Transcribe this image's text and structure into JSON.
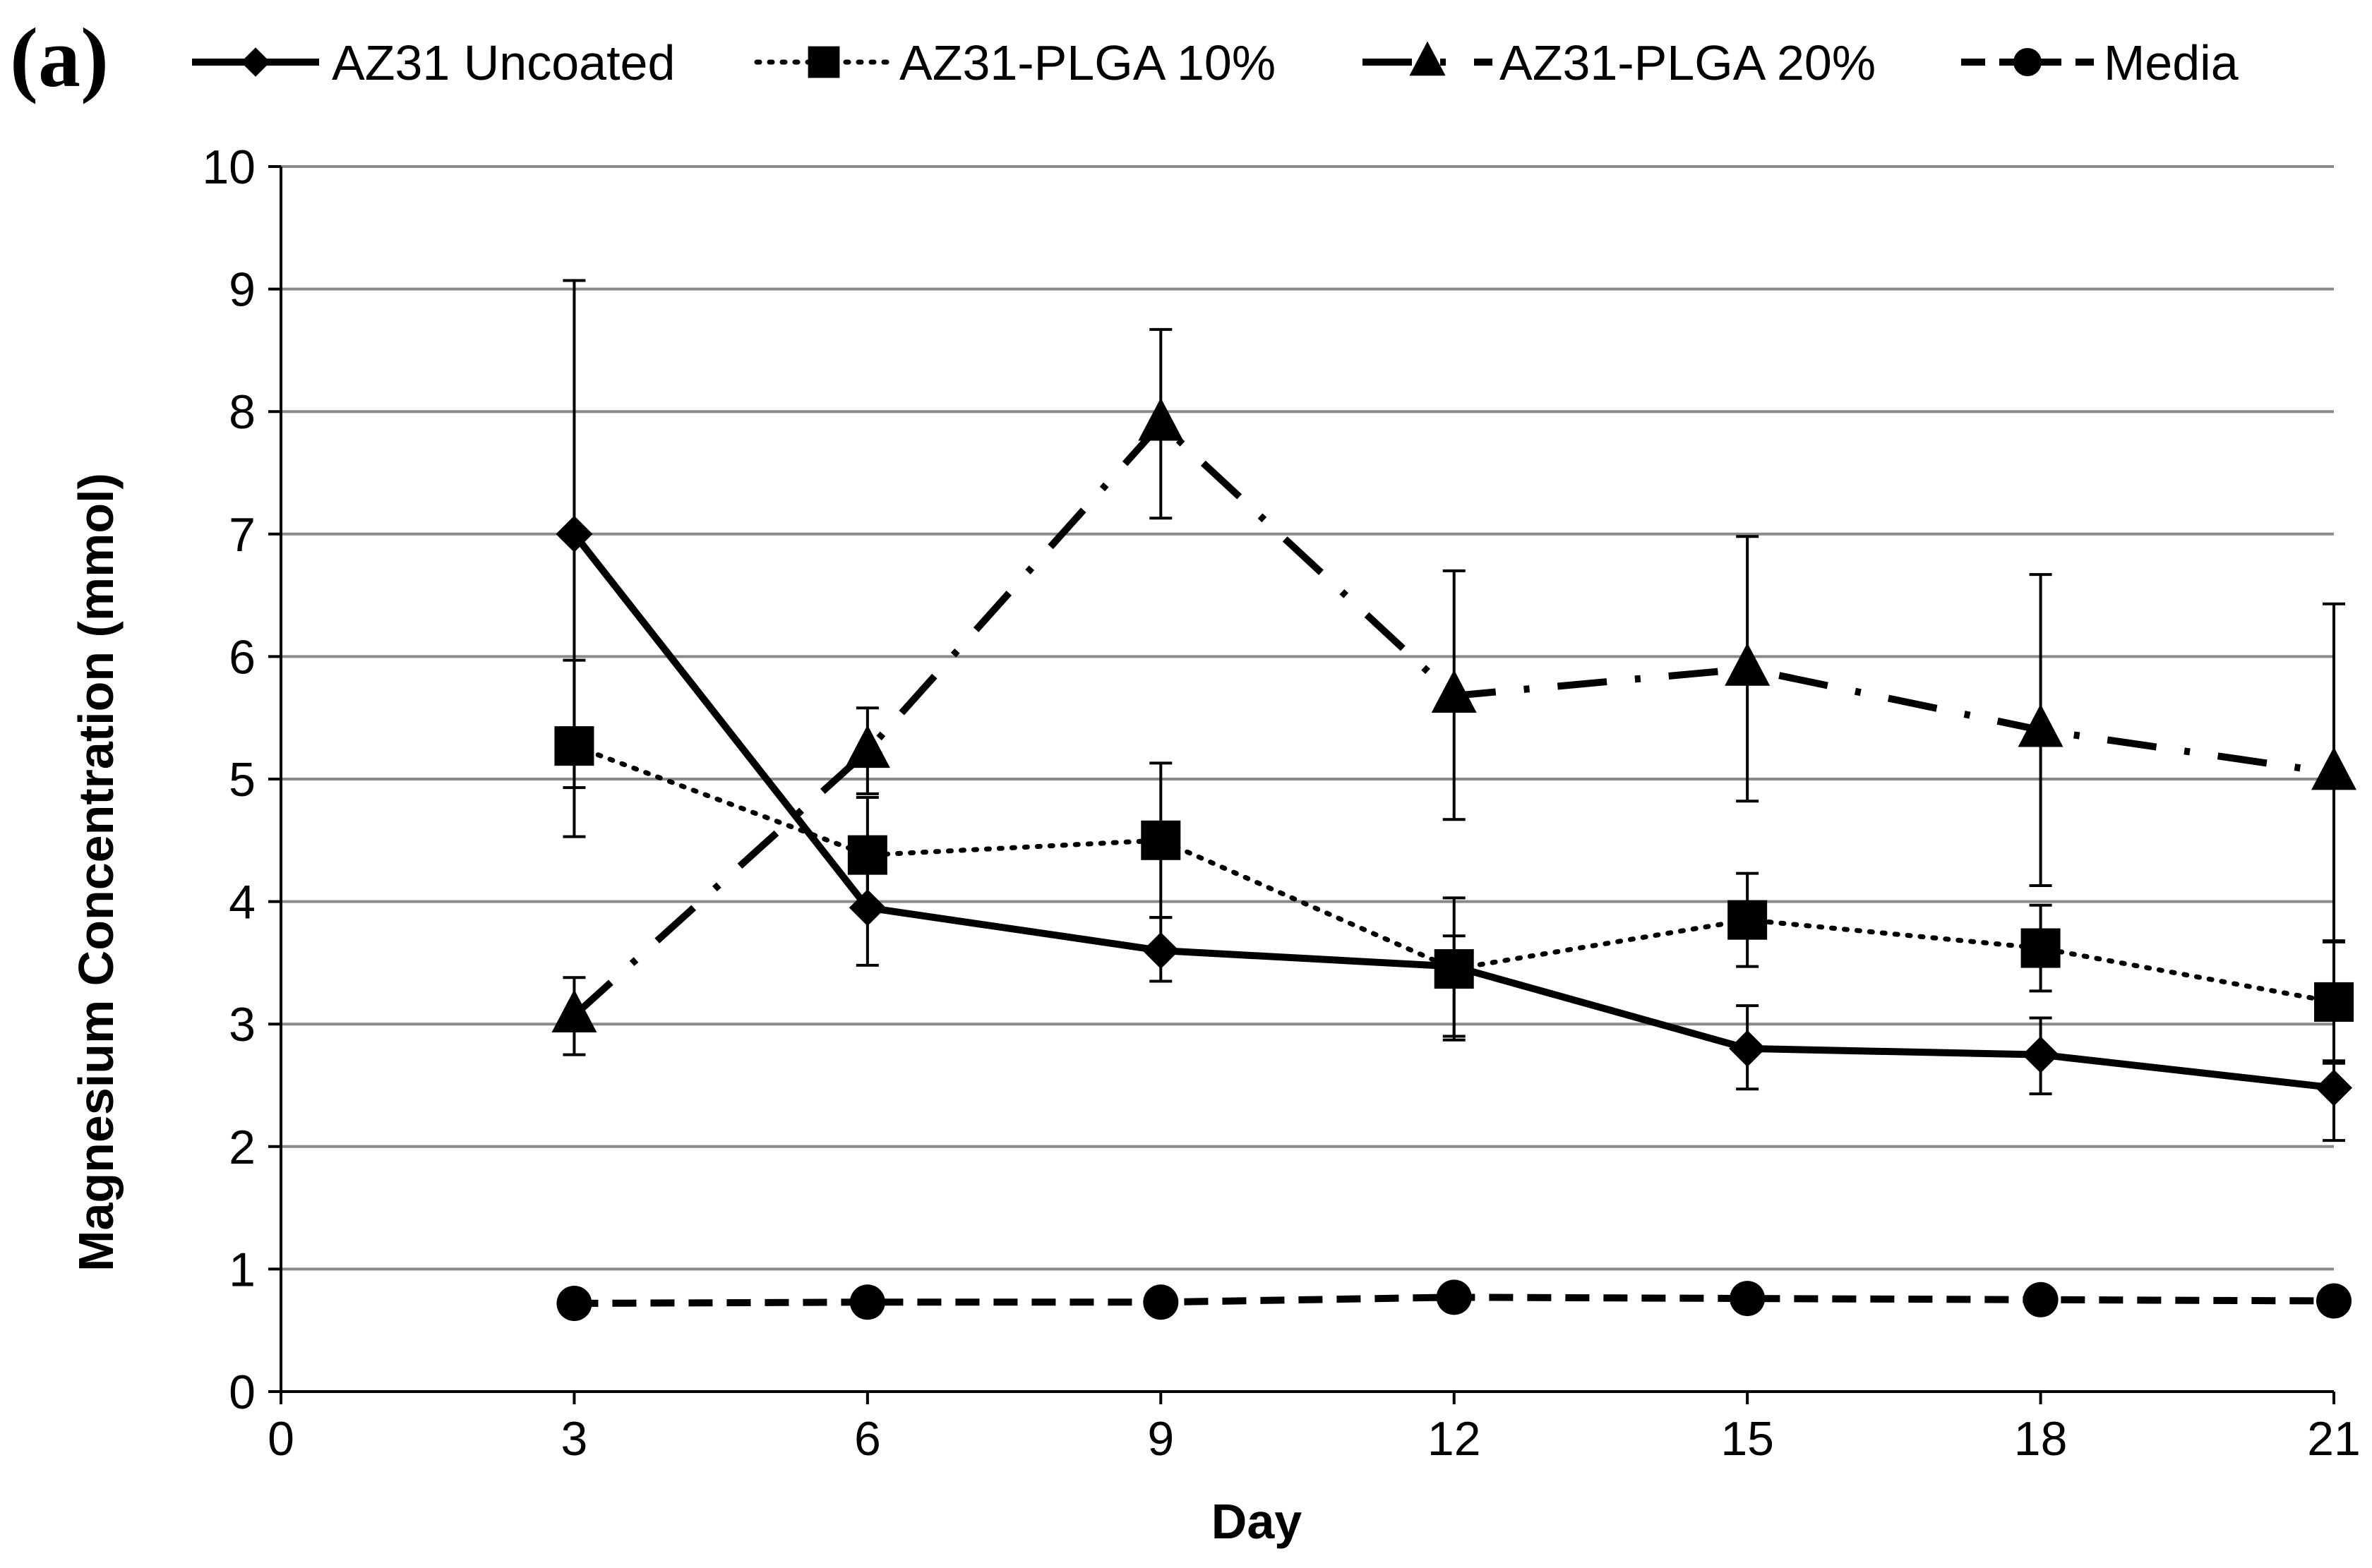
{
  "panel_label": "(a)",
  "chart_data": {
    "type": "line",
    "title": "",
    "xlabel": "Day",
    "ylabel": "Magnesium Concentration (mmol)",
    "xlim": [
      0,
      21
    ],
    "ylim": [
      0,
      10
    ],
    "xticks": [
      0,
      3,
      6,
      9,
      12,
      15,
      18,
      21
    ],
    "yticks": [
      0,
      1,
      2,
      3,
      4,
      5,
      6,
      7,
      8,
      9,
      10
    ],
    "grid": "horizontal",
    "legend_position": "top",
    "x": [
      3,
      6,
      9,
      12,
      15,
      18,
      21
    ],
    "series": [
      {
        "name": "AZ31 Uncoated",
        "marker": "diamond",
        "line": "solid",
        "values": [
          7.0,
          3.95,
          3.6,
          3.47,
          2.8,
          2.75,
          2.48
        ],
        "error_high": [
          9.07,
          4.42,
          3.87,
          3.72,
          3.15,
          3.05,
          2.7
        ],
        "error_low": [
          4.53,
          3.48,
          3.35,
          2.9,
          2.47,
          2.43,
          2.05
        ]
      },
      {
        "name": "AZ31-PLGA 10%",
        "marker": "square",
        "line": "dotted",
        "values": [
          5.27,
          4.38,
          4.5,
          3.45,
          3.85,
          3.62,
          3.18
        ],
        "error_high": [
          5.97,
          4.85,
          5.13,
          4.03,
          4.23,
          3.97,
          3.68
        ],
        "error_low": [
          4.93,
          3.93,
          3.87,
          2.87,
          3.47,
          3.27,
          2.68
        ]
      },
      {
        "name": "AZ31-PLGA 20%",
        "marker": "triangle",
        "line": "dash-dot",
        "values": [
          3.07,
          5.23,
          7.9,
          5.68,
          5.9,
          5.4,
          5.05
        ],
        "error_high": [
          3.38,
          5.58,
          8.67,
          6.7,
          6.98,
          6.67,
          6.43
        ],
        "error_low": [
          2.75,
          4.88,
          7.13,
          4.67,
          4.82,
          4.13,
          3.67
        ]
      },
      {
        "name": "Media",
        "marker": "circle",
        "line": "dashed",
        "values": [
          0.72,
          0.73,
          0.73,
          0.77,
          0.76,
          0.75,
          0.74
        ],
        "error_high": null,
        "error_low": null
      }
    ]
  }
}
